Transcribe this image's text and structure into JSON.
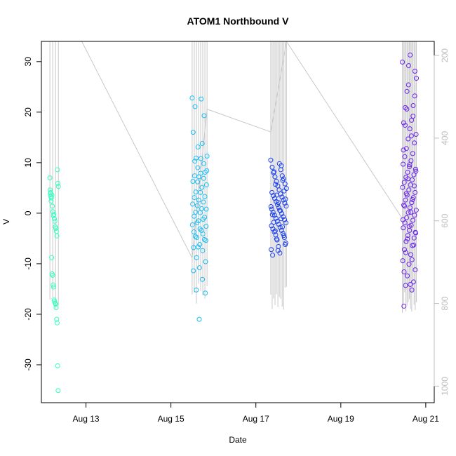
{
  "chart_data": {
    "type": "scatter",
    "title": "ATOM1 Northbound V",
    "xlabel": "Date",
    "ylabel": "V",
    "x_ticks": [
      "Aug 13",
      "Aug 15",
      "Aug 17",
      "Aug 19",
      "Aug 21"
    ],
    "x_tick_days": [
      13,
      15,
      17,
      19,
      21
    ],
    "xlim_days": [
      11.95,
      21.2
    ],
    "y_ticks": [
      -30,
      -20,
      -10,
      0,
      10,
      20,
      30
    ],
    "ylim": [
      -37.5,
      34.0
    ],
    "y2_ticks": [
      200,
      400,
      600,
      800,
      1000
    ],
    "y2lim": [
      1040,
      166
    ],
    "grid": false,
    "colors": {
      "point_colors": [
        "#33ffbf",
        "#19bff5",
        "#1a3ff0",
        "#6a22ee"
      ],
      "secondary_line": "#c8c8c8",
      "secondary_axis": "#bdbdbd"
    },
    "groups": [
      {
        "x_day_start": 12.15,
        "x_day_end": 12.35,
        "v_values": [
          7.0,
          3.8,
          3.3,
          3.0,
          3.6,
          1.4,
          0.3,
          -0.5,
          -0.2,
          -1.1,
          -1.6,
          -2.7,
          -3.0,
          -3.6,
          -4.5,
          8.6,
          5.9,
          5.3,
          4.6,
          4.1,
          2.4,
          -8.8,
          -12.0,
          -12.3,
          -14.2,
          -14.6,
          -17.2,
          -17.5,
          -17.8,
          -18.0,
          -18.7,
          -21.0,
          -21.7,
          -30.2,
          -35.1
        ]
      },
      {
        "x_day_start": 15.5,
        "x_day_end": 15.85,
        "v_values": [
          22.8,
          22.6,
          21.1,
          19.3,
          13.1,
          11.3,
          10.8,
          10.3,
          9.8,
          9.0,
          8.4,
          7.9,
          7.4,
          6.9,
          6.2,
          5.6,
          4.1,
          3.1,
          2.2,
          1.5,
          0.8,
          0.1,
          -0.6,
          -1.2,
          -1.9,
          -2.6,
          -3.1,
          -3.7,
          -4.1,
          -4.8,
          -5.4,
          -6.2,
          -6.8,
          -7.4,
          -8.8,
          -9.6,
          -10.8,
          -11.4,
          -13.1,
          -15.2,
          -15.8,
          -21.0,
          16.0,
          13.8,
          10.9,
          8.1,
          7.2,
          6.3,
          5.1,
          4.2,
          3.3,
          2.6,
          1.8,
          0.9,
          0.2,
          -0.8,
          -1.5,
          -2.3,
          -3.4,
          -4.6,
          -5.2,
          -6.7
        ]
      },
      {
        "x_day_start": 17.35,
        "x_day_end": 17.72,
        "v_values": [
          10.5,
          9.8,
          9.1,
          8.6,
          8.0,
          7.4,
          7.2,
          6.8,
          6.3,
          5.8,
          5.4,
          4.9,
          4.6,
          4.1,
          3.8,
          3.5,
          3.2,
          2.9,
          2.6,
          2.3,
          2.0,
          1.7,
          1.4,
          1.1,
          0.8,
          0.5,
          0.2,
          -0.1,
          -0.4,
          -0.7,
          -1.0,
          -1.3,
          -1.6,
          -1.9,
          -2.2,
          -2.5,
          -2.8,
          -3.1,
          -3.4,
          -3.7,
          -4.0,
          -4.3,
          -4.8,
          -5.3,
          -5.9,
          -6.6,
          -7.2,
          -7.9,
          -8.3,
          9.4,
          8.2,
          6.5,
          5.7,
          4.4,
          3.6,
          2.8,
          2.1,
          1.3,
          0.6,
          -0.3,
          -1.1,
          -1.8,
          -2.7,
          -3.5,
          -4.4,
          -5.1,
          -6.2,
          -7.4
        ]
      },
      {
        "x_day_start": 20.45,
        "x_day_end": 20.78,
        "v_values": [
          29.9,
          29.2,
          28.1,
          24.1,
          21.3,
          20.9,
          18.4,
          17.9,
          16.7,
          15.6,
          14.7,
          13.9,
          12.8,
          11.8,
          11.2,
          10.4,
          9.7,
          9.2,
          8.7,
          8.1,
          7.6,
          7.1,
          6.6,
          6.1,
          5.6,
          5.1,
          4.6,
          4.1,
          3.6,
          3.1,
          2.6,
          2.1,
          1.6,
          1.1,
          0.6,
          0.1,
          -0.4,
          -0.9,
          -1.4,
          -1.9,
          -2.4,
          -2.9,
          -3.4,
          -3.9,
          -4.4,
          -4.9,
          -5.6,
          -6.4,
          -7.2,
          -8.2,
          -9.4,
          -10.1,
          -11.2,
          -12.4,
          -13.6,
          -14.3,
          -15.2,
          -18.4,
          31.3,
          26.7,
          25.4,
          23.2,
          20.6,
          19.2,
          17.4,
          15.3,
          12.5,
          9.6,
          8.3,
          6.8,
          5.4,
          3.9,
          2.7,
          1.4,
          0.2,
          -1.3,
          -2.6,
          -3.8,
          -5.1,
          -6.3,
          -7.8,
          -9.2,
          -11.6,
          -14.1
        ]
      }
    ],
    "secondary_line": [
      {
        "x_day": 12.9,
        "y2": 166
      },
      {
        "x_day": 15.5,
        "y2": 690
      },
      {
        "x_day": 15.85,
        "y2": 330
      },
      {
        "x_day": 17.35,
        "y2": 385
      },
      {
        "x_day": 17.72,
        "y2": 166
      },
      {
        "x_day": 20.45,
        "y2": 595
      }
    ],
    "secondary_spikes": [
      {
        "x_day_start": 12.15,
        "x_day_end": 12.35,
        "count": 4,
        "y2_bottom": 820
      },
      {
        "x_day_start": 15.5,
        "x_day_end": 15.85,
        "count": 8,
        "y2_bottom": 805
      },
      {
        "x_day_start": 17.35,
        "x_day_end": 17.72,
        "count": 12,
        "y2_bottom": 818
      },
      {
        "x_day_start": 20.45,
        "x_day_end": 20.78,
        "count": 13,
        "y2_bottom": 830
      }
    ]
  }
}
